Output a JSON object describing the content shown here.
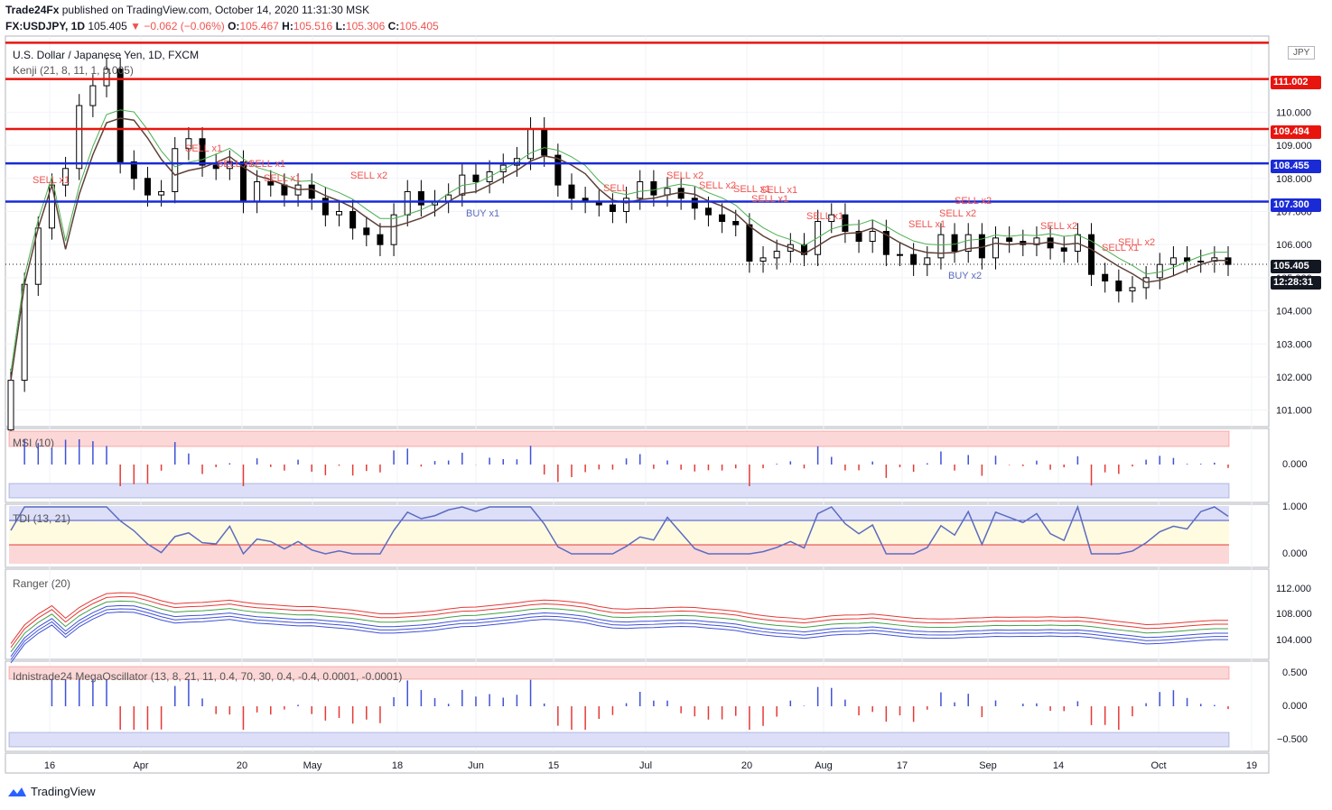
{
  "header": {
    "publisher": "Trade24Fx",
    "published_text": "published on TradingView.com, October 14, 2020 11:31:30 MSK",
    "symbol": "FX:USDJPY, 1D",
    "last": "105.405",
    "change": "−0.062 (−0.06%)",
    "open_label": "O:",
    "open": "105.467",
    "high_label": "H:",
    "high": "105.516",
    "low_label": "L:",
    "low": "105.306",
    "close_label": "C:",
    "close": "105.405"
  },
  "main": {
    "title": "U.S. Dollar / Japanese Yen, 1D, FXCM",
    "indicator": "Kenji (21, 8, 11, 1, 0.005)",
    "currency_badge": "JPY"
  },
  "price_tags": [
    {
      "label": "111.002",
      "color": "#e8150f"
    },
    {
      "label": "109.494",
      "color": "#e8150f"
    },
    {
      "label": "108.455",
      "color": "#1a2bd6"
    },
    {
      "label": "107.300",
      "color": "#1a2bd6"
    },
    {
      "label": "105.405",
      "color": "#131722"
    },
    {
      "label": "12:28:31",
      "color": "#131722"
    }
  ],
  "panes": {
    "msi": {
      "label": "MSI (10)",
      "tick": "0.000"
    },
    "tdi": {
      "label": "TDI (13, 21)",
      "ticks": [
        "1.000",
        "0.000"
      ]
    },
    "ranger": {
      "label": "Ranger (20)",
      "ticks": [
        "112.000",
        "108.000",
        "104.000"
      ]
    },
    "mega": {
      "label": "Idnistrade24 MegaOscillator (13, 8, 21, 11, 0.4, 70, 30, 0.4, -0.4, 0.0001, -0.0001)",
      "ticks": [
        "0.500",
        "0.000",
        "−0.500"
      ]
    }
  },
  "footer": {
    "brand": "TradingView"
  },
  "chart_data": {
    "type": "candlestick",
    "symbol": "USDJPY",
    "timeframe": "1D",
    "ylim": [
      100.5,
      112.3
    ],
    "y_ticks": [
      "110.000",
      "109.000",
      "108.000",
      "107.000",
      "106.000",
      "105.000",
      "104.000",
      "103.000",
      "102.000",
      "101.000"
    ],
    "x_ticks": [
      "16",
      "Apr",
      "20",
      "May",
      "18",
      "Jun",
      "15",
      "Jul",
      "20",
      "Aug",
      "17",
      "Sep",
      "14",
      "Oct",
      "19"
    ],
    "levels": [
      {
        "value": 112.1,
        "color": "#e8150f"
      },
      {
        "value": 111.002,
        "color": "#e8150f"
      },
      {
        "value": 109.494,
        "color": "#e8150f"
      },
      {
        "value": 108.455,
        "color": "#1a2bd6"
      },
      {
        "value": 107.3,
        "color": "#1a2bd6"
      }
    ],
    "signals": [
      {
        "text": "SELL x1",
        "date": "Mar 13"
      },
      {
        "text": "SELL x1",
        "date": "Apr 07"
      },
      {
        "text": "SELL x1",
        "date": "Apr 14"
      },
      {
        "text": "SELL x1",
        "date": "Apr 16"
      },
      {
        "text": "SELL x1",
        "date": "Apr 22"
      },
      {
        "text": "SELL x2",
        "date": "May 13"
      },
      {
        "text": "BUY x1",
        "date": "Jun 01"
      },
      {
        "text": "SELL",
        "date": "Jun 26"
      },
      {
        "text": "SELL x2",
        "date": "Jul 06"
      },
      {
        "text": "SELL x2",
        "date": "Jul 13"
      },
      {
        "text": "SELL x1",
        "date": "Jul 22"
      },
      {
        "text": "SELL x1",
        "date": "Jul 24"
      },
      {
        "text": "SELL x1",
        "date": "Jul 28"
      },
      {
        "text": "SELL x1",
        "date": "Jul 31"
      },
      {
        "text": "SELL x1",
        "date": "Aug 20"
      },
      {
        "text": "SELL x2",
        "date": "Aug 25"
      },
      {
        "text": "SELL x2",
        "date": "Aug 27"
      },
      {
        "text": "BUY x2",
        "date": "Aug 28"
      },
      {
        "text": "SELL x2",
        "date": "Sep 11"
      },
      {
        "text": "SELL x1",
        "date": "Sep 24"
      },
      {
        "text": "SELL x2",
        "date": "Sep 29"
      }
    ],
    "closes": [
      101.9,
      104.8,
      106.5,
      107.8,
      108.3,
      110.2,
      110.8,
      111.3,
      108.5,
      108.0,
      107.5,
      107.6,
      108.9,
      109.2,
      108.4,
      108.3,
      108.5,
      107.3,
      107.9,
      107.8,
      107.5,
      107.8,
      107.4,
      106.9,
      107.0,
      106.5,
      106.3,
      106.0,
      106.9,
      107.6,
      107.2,
      107.3,
      107.5,
      108.1,
      107.9,
      108.2,
      108.4,
      108.6,
      109.5,
      108.7,
      107.8,
      107.4,
      107.3,
      107.2,
      107.0,
      107.4,
      107.9,
      107.5,
      107.7,
      107.4,
      107.1,
      106.9,
      106.7,
      106.6,
      105.5,
      105.6,
      105.8,
      106.0,
      105.7,
      106.7,
      106.9,
      106.4,
      106.1,
      106.4,
      105.7,
      105.7,
      105.4,
      105.6,
      106.3,
      105.8,
      106.3,
      105.6,
      106.2,
      106.1,
      106.0,
      106.2,
      105.9,
      105.8,
      106.3,
      105.1,
      104.9,
      104.6,
      104.7,
      105.0,
      105.4,
      105.6,
      105.5,
      105.5,
      105.6,
      105.4
    ]
  }
}
